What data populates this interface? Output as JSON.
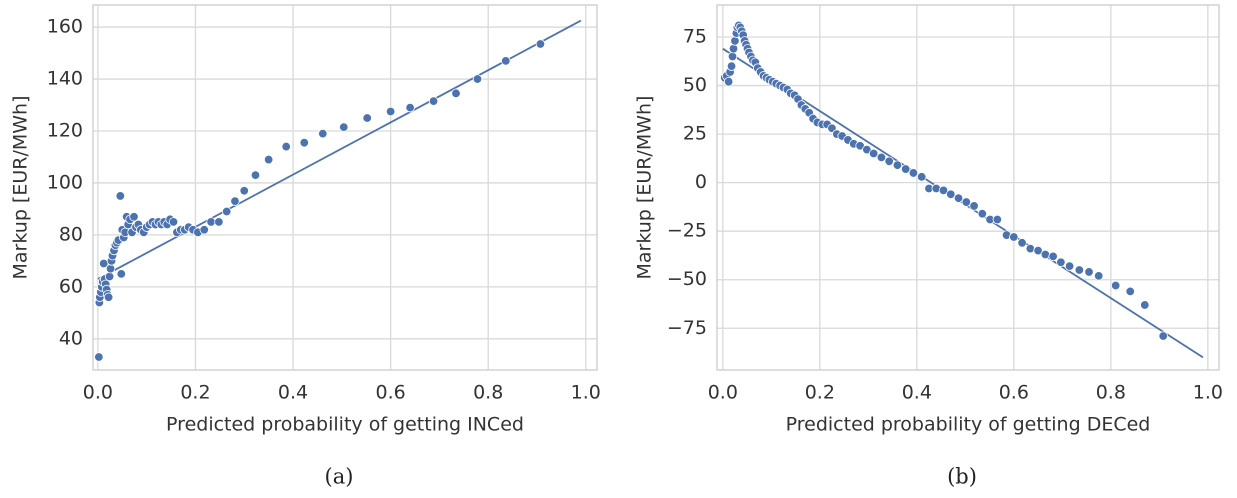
{
  "chart_data": [
    {
      "type": "scatter",
      "caption": "(a)",
      "x_label": "Predicted probability of getting INCed",
      "y_label": "Markup [EUR/MWh]",
      "color": "#4c72b0",
      "grid": true,
      "xlim": [
        -0.01,
        1.023
      ],
      "ylim": [
        28,
        168.5
      ],
      "xticks": [
        {
          "value": 0,
          "label": "0.0"
        },
        0.2,
        0.4,
        0.6,
        0.8,
        {
          "value": 1,
          "label": "1.0"
        }
      ],
      "yticks": [
        40,
        60,
        80,
        100,
        120,
        140,
        160
      ],
      "x": [
        0.002,
        0.003,
        0.004,
        0.006,
        0.008,
        0.01,
        0.012,
        0.014,
        0.016,
        0.018,
        0.02,
        0.022,
        0.024,
        0.026,
        0.028,
        0.03,
        0.033,
        0.036,
        0.039,
        0.042,
        0.046,
        0.048,
        0.05,
        0.053,
        0.056,
        0.059,
        0.062,
        0.066,
        0.07,
        0.074,
        0.078,
        0.083,
        0.088,
        0.094,
        0.1,
        0.106,
        0.112,
        0.118,
        0.124,
        0.13,
        0.136,
        0.142,
        0.148,
        0.155,
        0.162,
        0.17,
        0.178,
        0.186,
        0.195,
        0.205,
        0.218,
        0.232,
        0.248,
        0.264,
        0.281,
        0.3,
        0.323,
        0.35,
        0.386,
        0.423,
        0.461,
        0.504,
        0.552,
        0.6,
        0.64,
        0.688,
        0.734,
        0.778,
        0.836,
        0.907
      ],
      "values": [
        33,
        54,
        56,
        58,
        60,
        62,
        69,
        63,
        61,
        59,
        57,
        56,
        64,
        67,
        70,
        72,
        74,
        76,
        77,
        78,
        95,
        65,
        82,
        79,
        81,
        87,
        84,
        86,
        81,
        87,
        83,
        84,
        82,
        81,
        83,
        84,
        85,
        84,
        85,
        84,
        85,
        84,
        86,
        85,
        81,
        82,
        82,
        83,
        82,
        81,
        82,
        85,
        85,
        89,
        93,
        97,
        103,
        109,
        114,
        115.5,
        119,
        121.5,
        125,
        127.5,
        129,
        131.5,
        134.5,
        140,
        147,
        153.5
      ],
      "fit_x": [
        0,
        0.99
      ],
      "fit_values": [
        63,
        162.5
      ]
    },
    {
      "type": "scatter",
      "caption": "(b)",
      "x_label": "Predicted probability of getting DECed",
      "y_label": "Markup [EUR/MWh]",
      "color": "#4c72b0",
      "grid": true,
      "xlim": [
        -0.012,
        1.023
      ],
      "ylim": [
        -96.5,
        91.5
      ],
      "xticks": [
        {
          "value": 0,
          "label": "0.0"
        },
        0.2,
        0.4,
        0.6,
        0.8,
        {
          "value": 1,
          "label": "1.0"
        }
      ],
      "yticks": [
        {
          "value": -75,
          "label": "−75"
        },
        {
          "value": -50,
          "label": "−50"
        },
        {
          "value": -25,
          "label": "−25"
        },
        0,
        25,
        50,
        75
      ],
      "x": [
        0.004,
        0.008,
        0.012,
        0.015,
        0.018,
        0.02,
        0.022,
        0.025,
        0.028,
        0.03,
        0.033,
        0.036,
        0.039,
        0.042,
        0.045,
        0.048,
        0.051,
        0.054,
        0.058,
        0.062,
        0.067,
        0.072,
        0.078,
        0.084,
        0.09,
        0.096,
        0.103,
        0.11,
        0.118,
        0.125,
        0.133,
        0.14,
        0.148,
        0.155,
        0.162,
        0.17,
        0.178,
        0.186,
        0.195,
        0.205,
        0.215,
        0.225,
        0.235,
        0.246,
        0.258,
        0.27,
        0.283,
        0.297,
        0.311,
        0.327,
        0.343,
        0.36,
        0.377,
        0.393,
        0.41,
        0.425,
        0.44,
        0.455,
        0.47,
        0.486,
        0.502,
        0.518,
        0.535,
        0.551,
        0.566,
        0.585,
        0.6,
        0.617,
        0.634,
        0.65,
        0.665,
        0.681,
        0.697,
        0.715,
        0.735,
        0.755,
        0.775,
        0.81,
        0.84,
        0.87,
        0.908
      ],
      "values": [
        54,
        55,
        52,
        57,
        60,
        65,
        69,
        73,
        77,
        80,
        81,
        80,
        78,
        76,
        73,
        71,
        69,
        67,
        65,
        63,
        62,
        59,
        57,
        55,
        54,
        53,
        52,
        51,
        50,
        49,
        48,
        46,
        45,
        43,
        40,
        38,
        36,
        33,
        31,
        30,
        30,
        28,
        25,
        24,
        22,
        20,
        19,
        17,
        15,
        13,
        11,
        9,
        7,
        5,
        3,
        -3,
        -3,
        -4,
        -6,
        -8,
        -10,
        -12,
        -16,
        -19,
        -19,
        -27,
        -28,
        -31,
        -34,
        -35,
        -37,
        -38,
        -41,
        -43,
        -45,
        -46,
        -48,
        -53,
        -56,
        -63,
        -79
      ],
      "fit_x": [
        0,
        0.99
      ],
      "fit_values": [
        69,
        -90
      ]
    }
  ]
}
